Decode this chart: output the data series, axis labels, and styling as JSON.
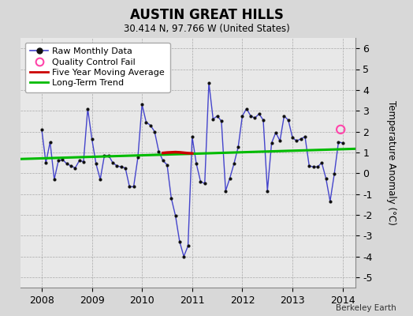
{
  "title": "AUSTIN GREAT HILLS",
  "subtitle": "30.414 N, 97.766 W (United States)",
  "ylabel": "Temperature Anomaly (°C)",
  "credit": "Berkeley Earth",
  "ylim": [
    -5.5,
    6.5
  ],
  "xlim": [
    2007.58,
    2014.25
  ],
  "yticks": [
    -5,
    -4,
    -3,
    -2,
    -1,
    0,
    1,
    2,
    3,
    4,
    5,
    6
  ],
  "xticks": [
    2008,
    2009,
    2010,
    2011,
    2012,
    2013,
    2014
  ],
  "bg_color": "#d8d8d8",
  "plot_bg_color": "#e8e8e8",
  "raw_color": "#4444cc",
  "raw_dot_color": "#111111",
  "qc_color": "#ff44aa",
  "moving_avg_color": "#cc0000",
  "trend_color": "#00bb00",
  "raw_monthly": [
    [
      2008.0,
      2.1
    ],
    [
      2008.083,
      0.5
    ],
    [
      2008.167,
      1.5
    ],
    [
      2008.25,
      -0.3
    ],
    [
      2008.333,
      0.6
    ],
    [
      2008.417,
      0.65
    ],
    [
      2008.5,
      0.45
    ],
    [
      2008.583,
      0.35
    ],
    [
      2008.667,
      0.25
    ],
    [
      2008.75,
      0.6
    ],
    [
      2008.833,
      0.55
    ],
    [
      2008.917,
      3.1
    ],
    [
      2009.0,
      1.65
    ],
    [
      2009.083,
      0.45
    ],
    [
      2009.167,
      -0.3
    ],
    [
      2009.25,
      0.85
    ],
    [
      2009.333,
      0.85
    ],
    [
      2009.417,
      0.5
    ],
    [
      2009.5,
      0.35
    ],
    [
      2009.583,
      0.3
    ],
    [
      2009.667,
      0.25
    ],
    [
      2009.75,
      -0.65
    ],
    [
      2009.833,
      -0.65
    ],
    [
      2009.917,
      0.75
    ],
    [
      2010.0,
      3.3
    ],
    [
      2010.083,
      2.45
    ],
    [
      2010.167,
      2.3
    ],
    [
      2010.25,
      2.0
    ],
    [
      2010.333,
      1.05
    ],
    [
      2010.417,
      0.6
    ],
    [
      2010.5,
      0.4
    ],
    [
      2010.583,
      -1.2
    ],
    [
      2010.667,
      -2.05
    ],
    [
      2010.75,
      -3.3
    ],
    [
      2010.833,
      -4.0
    ],
    [
      2010.917,
      -3.5
    ],
    [
      2011.0,
      1.75
    ],
    [
      2011.083,
      0.45
    ],
    [
      2011.167,
      -0.4
    ],
    [
      2011.25,
      -0.5
    ],
    [
      2011.333,
      4.35
    ],
    [
      2011.417,
      2.6
    ],
    [
      2011.5,
      2.75
    ],
    [
      2011.583,
      2.5
    ],
    [
      2011.667,
      -0.85
    ],
    [
      2011.75,
      -0.25
    ],
    [
      2011.833,
      0.45
    ],
    [
      2011.917,
      1.25
    ],
    [
      2012.0,
      2.75
    ],
    [
      2012.083,
      3.1
    ],
    [
      2012.167,
      2.75
    ],
    [
      2012.25,
      2.65
    ],
    [
      2012.333,
      2.85
    ],
    [
      2012.417,
      2.55
    ],
    [
      2012.5,
      -0.85
    ],
    [
      2012.583,
      1.45
    ],
    [
      2012.667,
      1.95
    ],
    [
      2012.75,
      1.55
    ],
    [
      2012.833,
      2.75
    ],
    [
      2012.917,
      2.55
    ],
    [
      2013.0,
      1.7
    ],
    [
      2013.083,
      1.55
    ],
    [
      2013.167,
      1.65
    ],
    [
      2013.25,
      1.75
    ],
    [
      2013.333,
      0.35
    ],
    [
      2013.417,
      0.3
    ],
    [
      2013.5,
      0.3
    ],
    [
      2013.583,
      0.5
    ],
    [
      2013.667,
      -0.25
    ],
    [
      2013.75,
      -1.35
    ],
    [
      2013.833,
      -0.05
    ],
    [
      2013.917,
      1.5
    ],
    [
      2014.0,
      1.45
    ]
  ],
  "five_year_avg": [
    [
      2010.417,
      0.97
    ],
    [
      2010.5,
      0.99
    ],
    [
      2010.583,
      1.0
    ],
    [
      2010.667,
      1.01
    ],
    [
      2010.75,
      1.0
    ],
    [
      2010.833,
      0.98
    ],
    [
      2010.917,
      0.96
    ],
    [
      2011.0,
      0.95
    ]
  ],
  "trend_line": [
    [
      2007.58,
      0.68
    ],
    [
      2014.25,
      1.17
    ]
  ],
  "qc_fail": [
    [
      2013.96,
      2.1
    ]
  ]
}
